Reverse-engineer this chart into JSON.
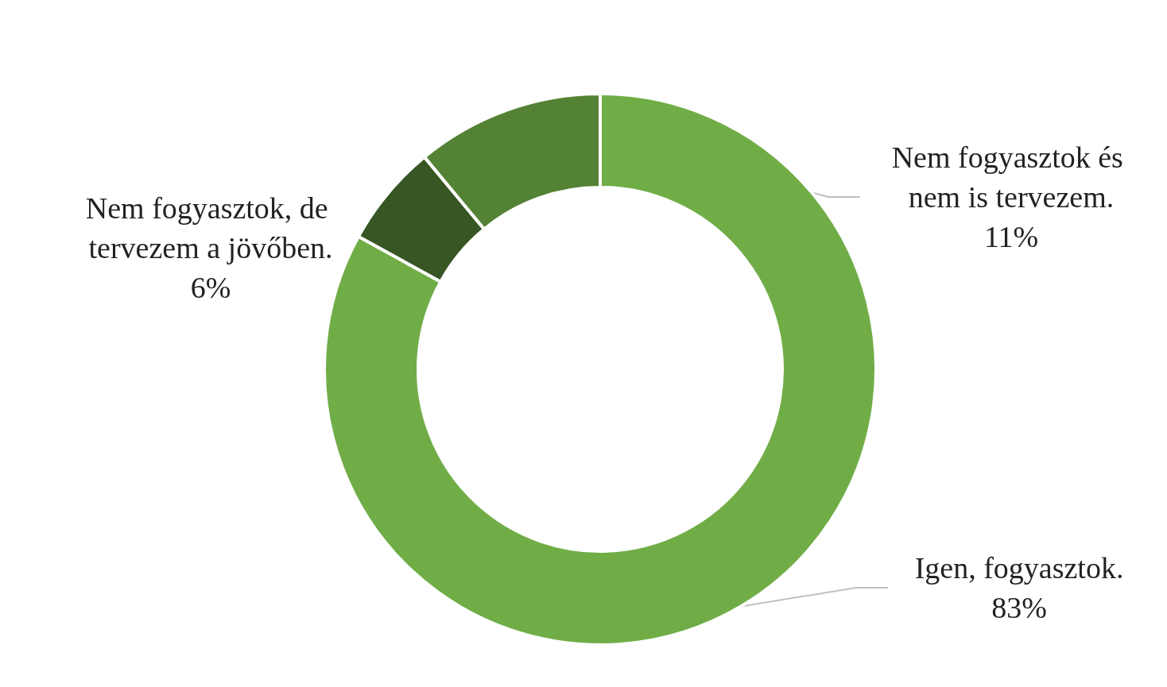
{
  "chart_data": {
    "type": "donut",
    "categories": [
      "Igen, fogyasztok.",
      "Nem fogyasztok, de tervezem a jövőben.",
      "Nem fogyasztok és nem is tervezem."
    ],
    "values": [
      83,
      6,
      11
    ],
    "colors": [
      "#70ad47",
      "#375623",
      "#548235"
    ],
    "value_labels": [
      "83%",
      "6%",
      "11%"
    ],
    "legend": false
  }
}
